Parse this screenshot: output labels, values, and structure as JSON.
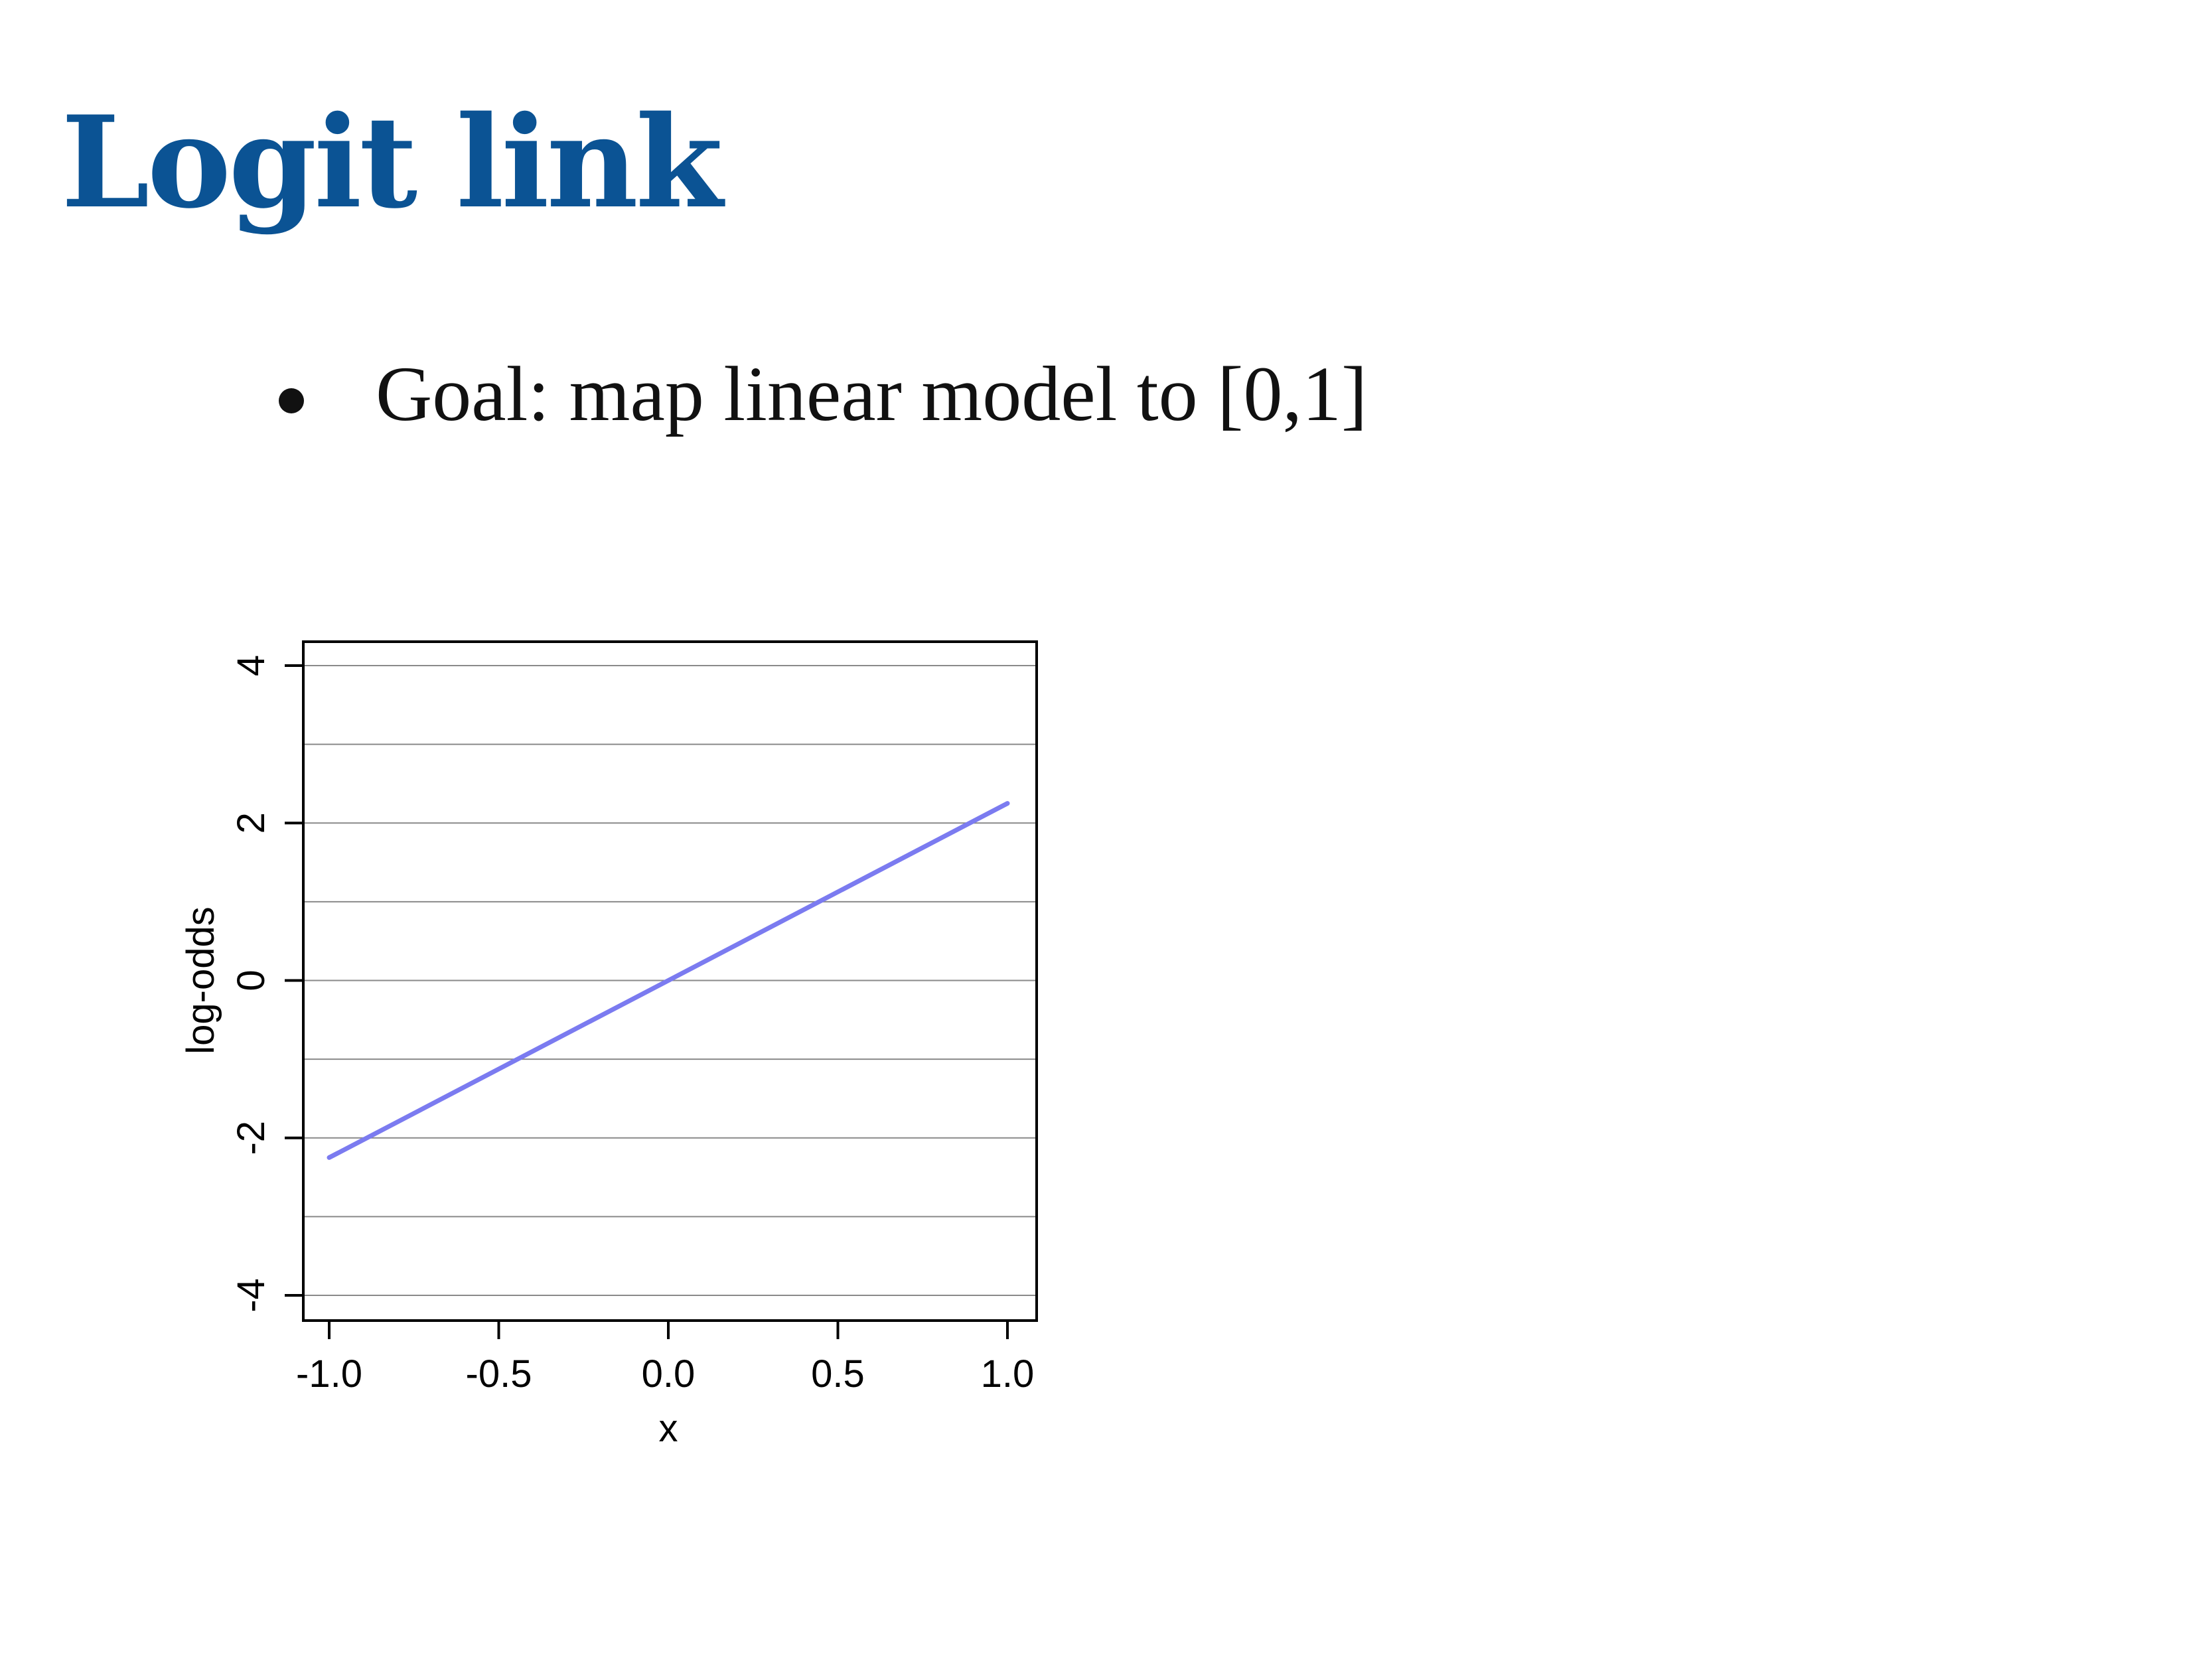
{
  "slide": {
    "title": "Logit link",
    "title_color": "#0b5394",
    "bullets": [
      "Goal: map linear model to [0,1]"
    ]
  },
  "chart_data": {
    "type": "line",
    "xlabel": "x",
    "ylabel": "log-odds",
    "xlim": [
      -1.0,
      1.0
    ],
    "ylim": [
      -4,
      4
    ],
    "x_ticks": [
      -1.0,
      -0.5,
      0.0,
      0.5,
      1.0
    ],
    "x_tick_labels": [
      "-1.0",
      "-0.5",
      "0.0",
      "0.5",
      "1.0"
    ],
    "y_ticks": [
      -4,
      -2,
      0,
      2,
      4
    ],
    "y_tick_labels": [
      "-4",
      "-2",
      "0",
      "2",
      "4"
    ],
    "gridlines_y": [
      -4,
      -3,
      -2,
      -1,
      0,
      1,
      2,
      3,
      4
    ],
    "grid": "horizontal",
    "line_color": "#7b7bf0",
    "series": [
      {
        "x": [
          -1.0,
          1.0
        ],
        "y": [
          -2.25,
          2.25
        ]
      }
    ]
  }
}
